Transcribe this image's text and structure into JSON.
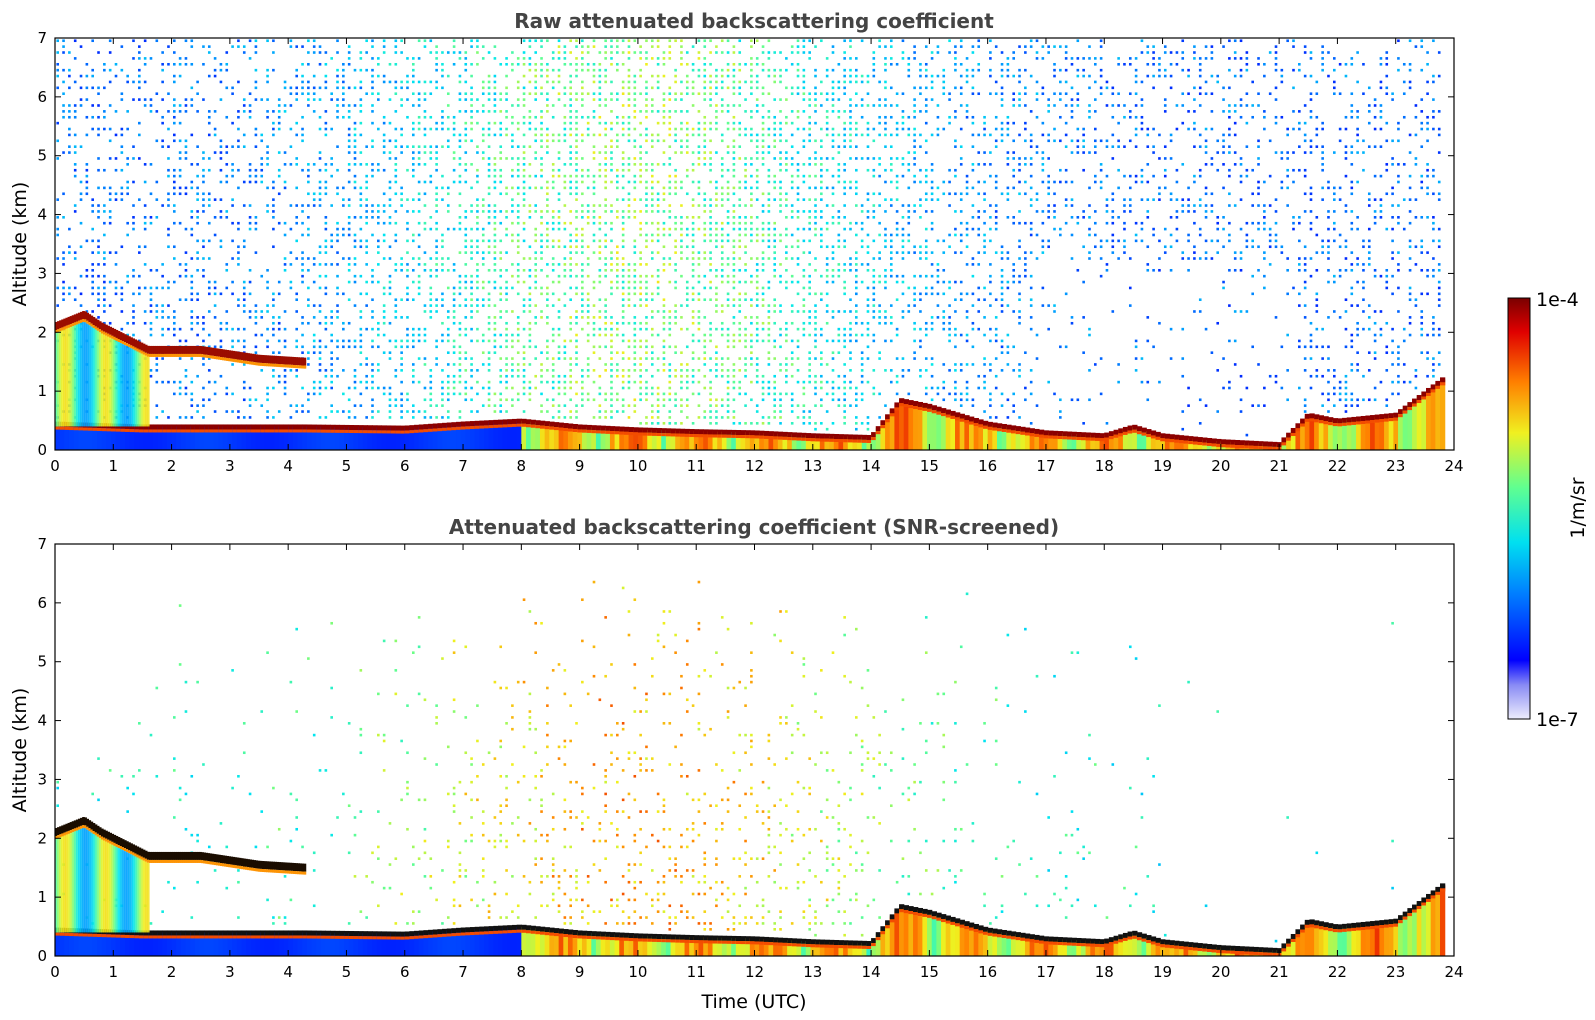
{
  "chart_data": [
    {
      "type": "heatmap",
      "title": "Raw attenuated backscattering coefficient",
      "xlabel": "",
      "ylabel": "Altitude (km)",
      "xlim": [
        0,
        24
      ],
      "ylim": [
        0,
        7
      ],
      "xticks": [
        "0",
        "1",
        "2",
        "3",
        "4",
        "5",
        "6",
        "7",
        "8",
        "9",
        "10",
        "11",
        "12",
        "13",
        "14",
        "15",
        "16",
        "17",
        "18",
        "19",
        "20",
        "21",
        "22",
        "23",
        "24"
      ],
      "yticks": [
        "0",
        "1",
        "2",
        "3",
        "4",
        "5",
        "6",
        "7"
      ],
      "data_end_time": 23.8,
      "screened": false,
      "layers": [
        {
          "name": "boundary layer top",
          "points": [
            [
              0,
              0.45
            ],
            [
              1.5,
              0.4
            ],
            [
              4.3,
              0.4
            ],
            [
              6,
              0.38
            ],
            [
              7,
              0.45
            ],
            [
              8,
              0.5
            ],
            [
              9,
              0.4
            ],
            [
              10,
              0.35
            ],
            [
              11,
              0.32
            ],
            [
              12,
              0.3
            ],
            [
              13,
              0.25
            ],
            [
              14,
              0.22
            ],
            [
              14.5,
              0.85
            ],
            [
              15,
              0.75
            ],
            [
              16,
              0.45
            ],
            [
              17,
              0.3
            ],
            [
              18,
              0.25
            ],
            [
              18.5,
              0.4
            ],
            [
              19,
              0.25
            ],
            [
              20,
              0.15
            ],
            [
              21,
              0.1
            ],
            [
              21.5,
              0.6
            ],
            [
              22,
              0.5
            ],
            [
              23,
              0.6
            ],
            [
              23.8,
              1.2
            ]
          ]
        },
        {
          "name": "residual layer",
          "points": [
            [
              0,
              2.1
            ],
            [
              0.5,
              2.3
            ],
            [
              0.8,
              2.1
            ],
            [
              1.2,
              1.9
            ],
            [
              1.6,
              1.7
            ],
            [
              2.5,
              1.7
            ],
            [
              3.5,
              1.55
            ],
            [
              4.3,
              1.5
            ]
          ]
        }
      ],
      "colorbar": {
        "label": "1/m/sr",
        "min_label": "1e-7",
        "max_label": "1e-4",
        "scale": "log",
        "colormap": "jet"
      }
    },
    {
      "type": "heatmap",
      "title": "Attenuated backscattering coefficient (SNR-screened)",
      "xlabel": "Time (UTC)",
      "ylabel": "Altitude (km)",
      "xlim": [
        0,
        24
      ],
      "ylim": [
        0,
        7
      ],
      "xticks": [
        "0",
        "1",
        "2",
        "3",
        "4",
        "5",
        "6",
        "7",
        "8",
        "9",
        "10",
        "11",
        "12",
        "13",
        "14",
        "15",
        "16",
        "17",
        "18",
        "19",
        "20",
        "21",
        "22",
        "23",
        "24"
      ],
      "yticks": [
        "0",
        "1",
        "2",
        "3",
        "4",
        "5",
        "6",
        "7"
      ],
      "data_end_time": 23.8,
      "screened": true,
      "layers": [
        {
          "name": "boundary layer top",
          "points": [
            [
              0,
              0.45
            ],
            [
              1.5,
              0.4
            ],
            [
              4.3,
              0.4
            ],
            [
              6,
              0.38
            ],
            [
              7,
              0.45
            ],
            [
              8,
              0.5
            ],
            [
              9,
              0.4
            ],
            [
              10,
              0.35
            ],
            [
              11,
              0.32
            ],
            [
              12,
              0.3
            ],
            [
              13,
              0.25
            ],
            [
              14,
              0.22
            ],
            [
              14.5,
              0.85
            ],
            [
              15,
              0.75
            ],
            [
              16,
              0.45
            ],
            [
              17,
              0.3
            ],
            [
              18,
              0.25
            ],
            [
              18.5,
              0.4
            ],
            [
              19,
              0.25
            ],
            [
              20,
              0.15
            ],
            [
              21,
              0.1
            ],
            [
              21.5,
              0.6
            ],
            [
              22,
              0.5
            ],
            [
              23,
              0.6
            ],
            [
              23.8,
              1.2
            ]
          ]
        },
        {
          "name": "residual layer",
          "points": [
            [
              0,
              2.1
            ],
            [
              0.5,
              2.3
            ],
            [
              0.8,
              2.1
            ],
            [
              1.2,
              1.9
            ],
            [
              1.6,
              1.7
            ],
            [
              2.5,
              1.7
            ],
            [
              3.5,
              1.55
            ],
            [
              4.3,
              1.5
            ]
          ]
        }
      ],
      "colorbar": {
        "label": "1/m/sr",
        "min_label": "1e-7",
        "max_label": "1e-4",
        "scale": "log",
        "colormap": "jet"
      }
    }
  ]
}
